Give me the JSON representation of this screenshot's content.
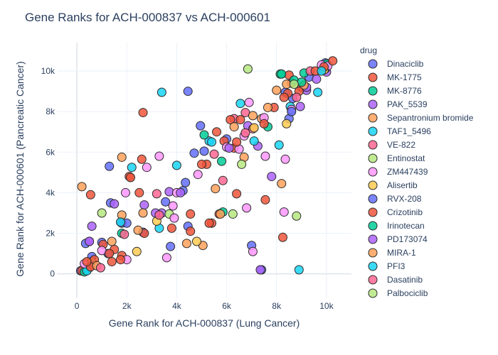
{
  "chart_data": {
    "type": "scatter",
    "title": "Gene Ranks for ACH-000837 vs ACH-000601",
    "xlabel": "Gene Rank for ACH-000837 (Lung Cancer)",
    "ylabel": "Gene Rank for ACH-000601 (Pancreatic Cancer)",
    "xlim": [
      -800,
      11000
    ],
    "ylim": [
      -1200,
      11400
    ],
    "x_ticks": [
      0,
      2000,
      4000,
      6000,
      8000,
      10000
    ],
    "x_tick_labels": [
      "0",
      "2k",
      "4k",
      "6k",
      "8k",
      "10k"
    ],
    "y_ticks": [
      0,
      2000,
      4000,
      6000,
      8000,
      10000
    ],
    "y_tick_labels": [
      "0",
      "2k",
      "4k",
      "6k",
      "8k",
      "10k"
    ],
    "grid": true,
    "legend": {
      "title": "drug",
      "placement": "right"
    },
    "series": [
      {
        "name": "Dinaciclib",
        "color": "#636efa",
        "points": [
          [
            1300,
            5300
          ],
          [
            4450,
            9000
          ],
          [
            4950,
            7300
          ],
          [
            4700,
            5950
          ],
          [
            4350,
            4500
          ],
          [
            4250,
            4100
          ],
          [
            3550,
            3550
          ],
          [
            1350,
            3500
          ],
          [
            2650,
            2050
          ],
          [
            1800,
            2500
          ],
          [
            2000,
            2500
          ],
          [
            3750,
            1350
          ],
          [
            7000,
            1400
          ],
          [
            7400,
            200
          ],
          [
            4450,
            2350
          ],
          [
            1250,
            1000
          ],
          [
            600,
            850
          ],
          [
            1000,
            1550
          ],
          [
            350,
            1500
          ],
          [
            8500,
            7650
          ],
          [
            8350,
            8950
          ],
          [
            9300,
            9700
          ],
          [
            9950,
            10400
          ],
          [
            150,
            150
          ],
          [
            6000,
            6650
          ],
          [
            8650,
            8650
          ]
        ]
      },
      {
        "name": "MK-1775",
        "color": "#ef553b",
        "points": [
          [
            2650,
            7950
          ],
          [
            5200,
            5400
          ],
          [
            5900,
            6550
          ],
          [
            6300,
            6200
          ],
          [
            8500,
            9800
          ],
          [
            8600,
            9400
          ],
          [
            9000,
            9200
          ],
          [
            8450,
            8900
          ],
          [
            7900,
            8200
          ],
          [
            2600,
            5650
          ],
          [
            2700,
            2000
          ],
          [
            3800,
            2250
          ],
          [
            1050,
            1450
          ],
          [
            1500,
            1200
          ],
          [
            1800,
            900
          ],
          [
            1400,
            600
          ],
          [
            500,
            300
          ],
          [
            200,
            150
          ],
          [
            2100,
            4800
          ],
          [
            4550,
            2950
          ],
          [
            5400,
            2500
          ],
          [
            5700,
            2950
          ]
        ]
      },
      {
        "name": "MK-8776",
        "color": "#00cc96",
        "points": [
          [
            5850,
            3050
          ],
          [
            7650,
            7250
          ],
          [
            8150,
            9850
          ],
          [
            8700,
            9550
          ],
          [
            300,
            100
          ],
          [
            1800,
            2000
          ],
          [
            9100,
            9900
          ],
          [
            10000,
            10350
          ]
        ]
      },
      {
        "name": "PAK_5539",
        "color": "#ab63fa",
        "points": [
          [
            7350,
            200
          ],
          [
            7250,
            6300
          ],
          [
            7800,
            4800
          ],
          [
            6850,
            7300
          ],
          [
            3700,
            4050
          ],
          [
            3400,
            3000
          ],
          [
            2700,
            3400
          ],
          [
            600,
            2350
          ],
          [
            500,
            1600
          ],
          [
            1500,
            3450
          ],
          [
            8950,
            8250
          ],
          [
            9200,
            9050
          ],
          [
            9200,
            9200
          ],
          [
            10000,
            9950
          ],
          [
            9600,
            9600
          ]
        ]
      },
      {
        "name": "Sepantronium bromide",
        "color": "#ffa15a",
        "points": [
          [
            200,
            4300
          ],
          [
            1800,
            5750
          ],
          [
            1400,
            1600
          ],
          [
            1800,
            2900
          ],
          [
            4400,
            1500
          ],
          [
            5050,
            1400
          ],
          [
            5550,
            4200
          ],
          [
            5750,
            2950
          ],
          [
            6700,
            5750
          ],
          [
            7400,
            7650
          ],
          [
            7650,
            8200
          ],
          [
            8200,
            4450
          ],
          [
            8400,
            9350
          ],
          [
            9100,
            9300
          ],
          [
            9950,
            10100
          ]
        ]
      },
      {
        "name": "TAF1_5496",
        "color": "#19d3f3",
        "points": [
          [
            3400,
            8950
          ],
          [
            2200,
            5250
          ],
          [
            4000,
            5350
          ],
          [
            3300,
            2250
          ],
          [
            1750,
            2550
          ],
          [
            7100,
            6550
          ],
          [
            8100,
            6350
          ],
          [
            8550,
            8250
          ],
          [
            9650,
            8950
          ],
          [
            8900,
            200
          ],
          [
            400,
            150
          ],
          [
            5300,
            6550
          ]
        ]
      },
      {
        "name": "VE-822",
        "color": "#ff6692",
        "points": [
          [
            6300,
            7650
          ],
          [
            6750,
            7950
          ],
          [
            7050,
            7150
          ],
          [
            9350,
            10000
          ],
          [
            3200,
            3950
          ],
          [
            5850,
            4600
          ]
        ]
      },
      {
        "name": "Entinostat",
        "color": "#b6e880",
        "points": [
          [
            6850,
            10100
          ],
          [
            6600,
            5400
          ],
          [
            3700,
            2950
          ],
          [
            1000,
            3000
          ],
          [
            600,
            600
          ]
        ]
      },
      {
        "name": "ZM447439",
        "color": "#ff97ff",
        "points": [
          [
            6900,
            8450
          ],
          [
            6700,
            6800
          ],
          [
            7550,
            5800
          ],
          [
            6500,
            6150
          ],
          [
            6000,
            6250
          ],
          [
            3300,
            5800
          ],
          [
            2800,
            5250
          ],
          [
            1950,
            4000
          ],
          [
            4850,
            4900
          ],
          [
            4000,
            4000
          ],
          [
            3850,
            3350
          ],
          [
            3900,
            2750
          ],
          [
            3600,
            800
          ],
          [
            2000,
            700
          ],
          [
            1000,
            1150
          ],
          [
            300,
            500
          ],
          [
            6800,
            3250
          ],
          [
            7050,
            1100
          ],
          [
            8300,
            3050
          ],
          [
            8350,
            5650
          ],
          [
            9800,
            10300
          ],
          [
            7500,
            7700
          ],
          [
            10050,
            10250
          ],
          [
            8600,
            8100
          ]
        ]
      },
      {
        "name": "Alisertib",
        "color": "#fecb52",
        "points": [
          [
            7100,
            7200
          ],
          [
            8400,
            7400
          ],
          [
            4800,
            1600
          ],
          [
            3200,
            2600
          ],
          [
            2400,
            1100
          ],
          [
            9900,
            10050
          ]
        ]
      },
      {
        "name": "RVX-208",
        "color": "#636efa",
        "points": [
          [
            5100,
            6050
          ],
          [
            8600,
            8000
          ]
        ]
      },
      {
        "name": "Crizotinib",
        "color": "#ef553b",
        "points": [
          [
            9550,
            10000
          ],
          [
            9900,
            10200
          ],
          [
            10250,
            10500
          ],
          [
            8900,
            9000
          ],
          [
            8300,
            8700
          ],
          [
            7500,
            7400
          ],
          [
            6550,
            7600
          ],
          [
            6400,
            6500
          ],
          [
            6150,
            7600
          ],
          [
            5600,
            7000
          ],
          [
            5000,
            5400
          ],
          [
            2150,
            4750
          ],
          [
            2500,
            4000
          ],
          [
            550,
            3900
          ],
          [
            6400,
            3950
          ],
          [
            4550,
            2100
          ],
          [
            5300,
            2500
          ],
          [
            7550,
            3650
          ],
          [
            8250,
            1800
          ],
          [
            1300,
            1000
          ],
          [
            1750,
            700
          ],
          [
            700,
            700
          ],
          [
            550,
            350
          ],
          [
            400,
            600
          ]
        ]
      },
      {
        "name": "Irinotecan",
        "color": "#00cc96",
        "points": [
          [
            5800,
            5550
          ],
          [
            5100,
            6850
          ],
          [
            8200,
            9850
          ],
          [
            9000,
            9450
          ]
        ]
      },
      {
        "name": "PD173074",
        "color": "#ab63fa",
        "points": [
          [
            6100,
            6200
          ],
          [
            4150,
            4000
          ],
          [
            3150,
            3000
          ],
          [
            500,
            1600
          ]
        ]
      },
      {
        "name": "MIRA-1",
        "color": "#ffa15a",
        "points": [
          [
            7050,
            7800
          ],
          [
            8000,
            9050
          ],
          [
            2450,
            2150
          ],
          [
            800,
            400
          ],
          [
            2650,
            3000
          ],
          [
            6300,
            7250
          ]
        ]
      },
      {
        "name": "PFI3",
        "color": "#19d3f3",
        "points": [
          [
            6550,
            8400
          ],
          [
            5400,
            6500
          ],
          [
            9800,
            10000
          ]
        ]
      },
      {
        "name": "Dasatinib",
        "color": "#ff6692",
        "points": [
          [
            6750,
            6950
          ],
          [
            5500,
            5900
          ],
          [
            3300,
            2900
          ],
          [
            1900,
            1950
          ],
          [
            950,
            300
          ],
          [
            8800,
            8700
          ]
        ]
      },
      {
        "name": "Palbociclib",
        "color": "#b6e880",
        "points": [
          [
            8800,
            2850
          ],
          [
            6250,
            2950
          ],
          [
            8700,
            9350
          ]
        ]
      }
    ]
  }
}
